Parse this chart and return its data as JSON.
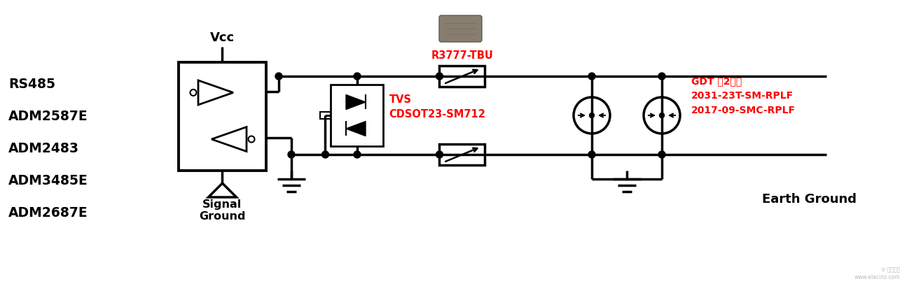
{
  "bg_color": "#ffffff",
  "text_black": "#000000",
  "text_red": "#ff0000",
  "labels_left": [
    "RS485",
    "ADM2587E",
    "ADM2483",
    "ADM3485E",
    "ADM2687E"
  ],
  "label_vcc": "Vcc",
  "label_signal_ground": "Signal\nGround",
  "label_earth_ground": "Earth Ground",
  "label_tvs": "TVS\nCDSOT23-SM712",
  "label_tbu": "R3777-TBU",
  "label_gdt": "GDT （2极）\n2031-23T-SM-RPLF\n2017-09-SMC-RPLF",
  "figsize": [
    13.05,
    4.19
  ],
  "dpi": 100
}
